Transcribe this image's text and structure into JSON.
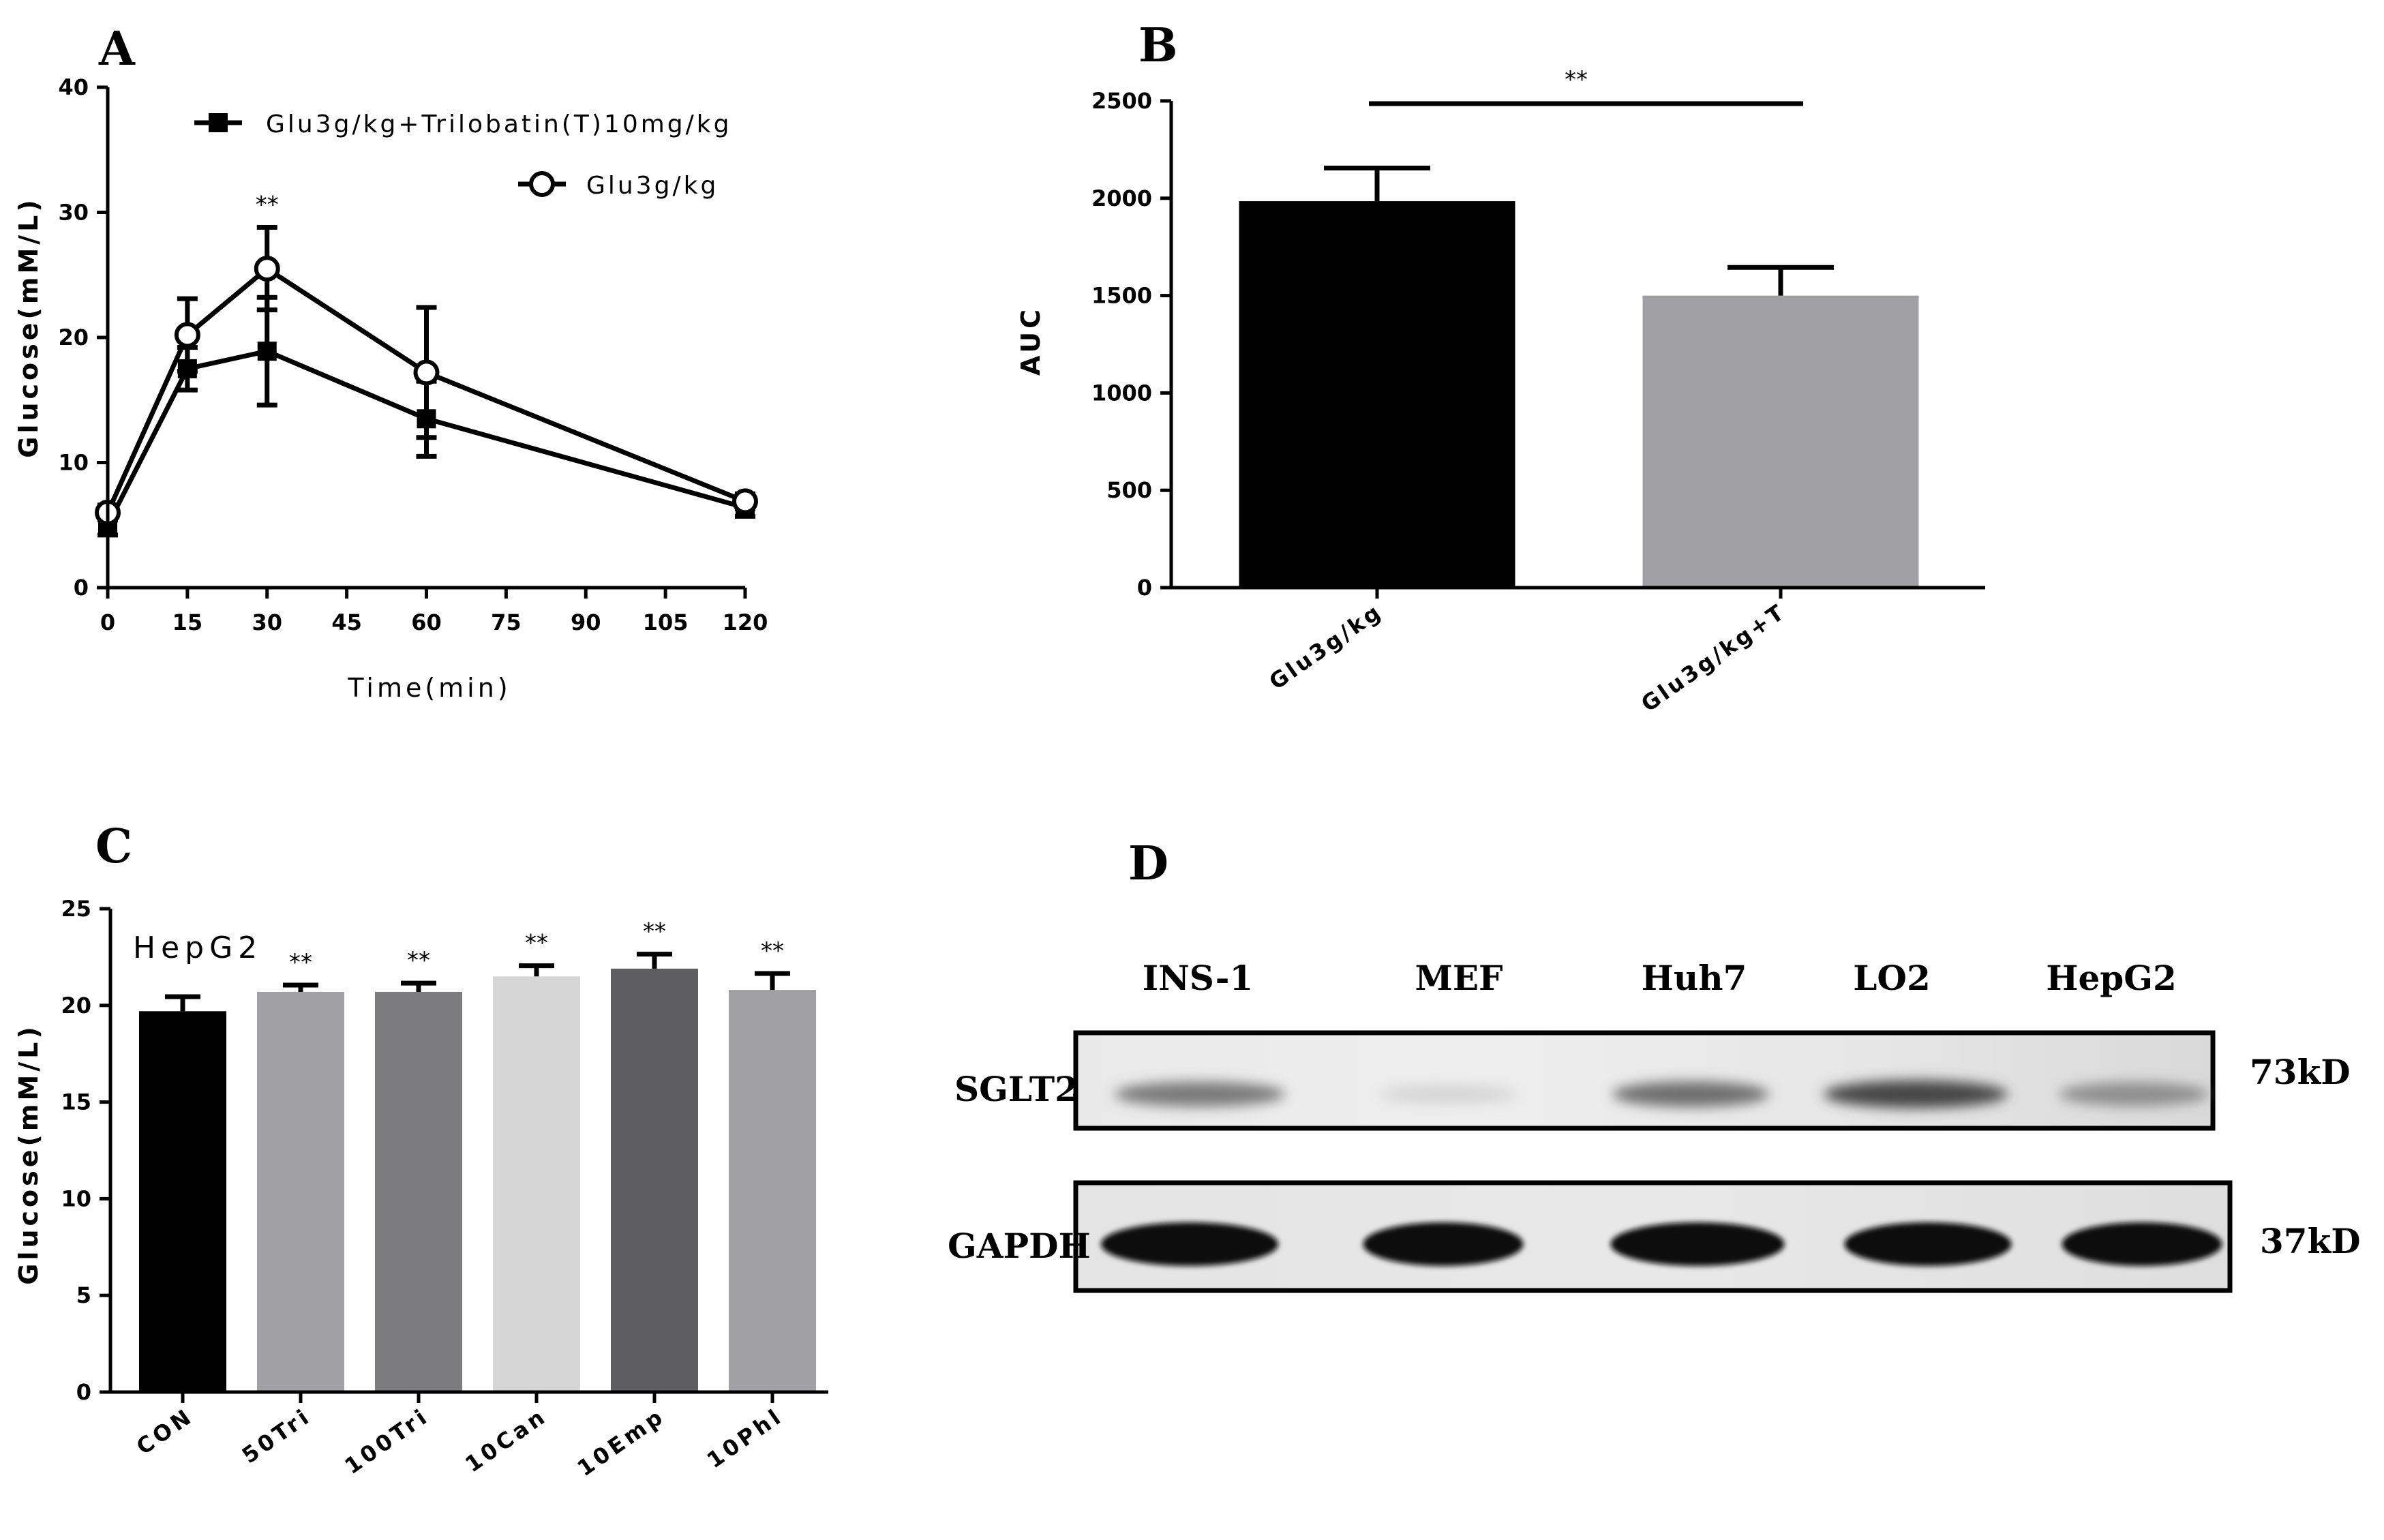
{
  "panels": [
    "A",
    "B",
    "C",
    "D"
  ],
  "chart_data": [
    {
      "panel": "A",
      "type": "line",
      "xlabel": "Time(min)",
      "ylabel": "Glucose(mM/L)",
      "xlim": [
        0,
        120
      ],
      "ylim": [
        0,
        40
      ],
      "xticks": [
        0,
        15,
        30,
        45,
        60,
        75,
        90,
        105,
        120
      ],
      "yticks": [
        0,
        10,
        20,
        30,
        40
      ],
      "legend_position": "top-right",
      "annotations": [
        {
          "x": 30,
          "text": "**"
        }
      ],
      "series": [
        {
          "name": "Glu3g/kg+Trilobatin(T)10mg/kg",
          "marker": "square",
          "x": [
            0,
            15,
            30,
            60,
            120
          ],
          "y": [
            5.0,
            17.5,
            18.9,
            13.5,
            6.4
          ],
          "err": [
            0.8,
            1.7,
            4.3,
            3.0,
            0.7
          ]
        },
        {
          "name": "Glu3g/kg",
          "marker": "circle-open",
          "x": [
            0,
            15,
            30,
            60,
            120
          ],
          "y": [
            6.0,
            20.2,
            25.5,
            17.2,
            6.9
          ],
          "err": [
            0.6,
            2.9,
            3.3,
            5.2,
            0.6
          ]
        }
      ]
    },
    {
      "panel": "B",
      "type": "bar",
      "ylabel": "AUC",
      "ylim": [
        0,
        2500
      ],
      "yticks": [
        0,
        500,
        1000,
        1500,
        2000,
        2500
      ],
      "categories": [
        "Glu3g/kg",
        "Glu3g/kg+T"
      ],
      "values": [
        1985,
        1500
      ],
      "err": [
        170,
        145
      ],
      "colors": [
        "#000000",
        "#a1a1a5"
      ],
      "annotations": [
        {
          "text": "**",
          "between": [
            0,
            1
          ]
        }
      ]
    },
    {
      "panel": "C",
      "type": "bar",
      "ylabel": "Glucose(mM/L)",
      "ylim": [
        0,
        25
      ],
      "yticks": [
        0,
        5,
        10,
        15,
        20,
        25
      ],
      "annotation_text": "HepG2",
      "categories": [
        "CON",
        "50Tri",
        "100Tri",
        "10Can",
        "10Emp",
        "10Phl"
      ],
      "values": [
        19.7,
        20.7,
        20.7,
        21.5,
        21.9,
        20.8
      ],
      "err": [
        0.75,
        0.35,
        0.45,
        0.55,
        0.75,
        0.85
      ],
      "colors": [
        "#000000",
        "#a1a1a5",
        "#7c7c7e",
        "#d6d6d6",
        "#5e5e60",
        "#a1a1a5"
      ],
      "significance": [
        "",
        "**",
        "**",
        "**",
        "**",
        "**"
      ]
    },
    {
      "panel": "D",
      "type": "blot",
      "lanes": [
        "INS-1",
        "MEF",
        "Huh7",
        "LO2",
        "HepG2"
      ],
      "rows": [
        {
          "label": "SGLT2",
          "size": "73kD",
          "intensity": [
            0.55,
            0.1,
            0.6,
            0.8,
            0.45
          ]
        },
        {
          "label": "GAPDH",
          "size": "37kD",
          "intensity": [
            1.0,
            1.0,
            1.0,
            1.0,
            1.0
          ]
        }
      ]
    }
  ]
}
